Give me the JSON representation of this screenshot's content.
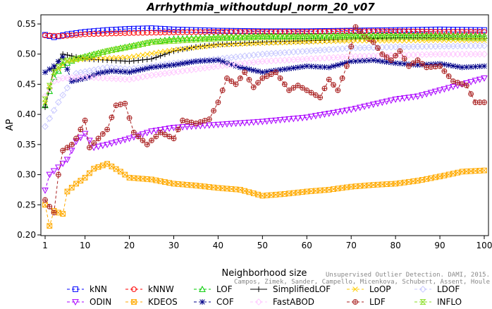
{
  "chart_data": {
    "type": "line",
    "title": "Arrhythmia_withoutdupl_norm_20_v07",
    "xlabel": "Neighborhood size",
    "ylabel": "AP",
    "xlim": [
      1,
      100
    ],
    "ylim": [
      0.2,
      0.55
    ],
    "xticks": [
      1,
      10,
      20,
      30,
      40,
      50,
      60,
      70,
      80,
      90,
      100
    ],
    "yticks": [
      0.2,
      0.25,
      0.3,
      0.35,
      0.4,
      0.45,
      0.5,
      0.55
    ],
    "grid": false,
    "legend_position": "bottom",
    "watermark": "Unsupervised Outlier Detection. DAMI, 2015. Campos, Zimek, Sander, Campello, Micenkova, Schubert, Assent, Houle",
    "series": [
      {
        "name": "kNN",
        "color": "#0000ff",
        "marker": "square",
        "dash": "4,3",
        "anchors": [
          [
            1,
            0.532
          ],
          [
            3,
            0.528
          ],
          [
            6,
            0.533
          ],
          [
            10,
            0.537
          ],
          [
            15,
            0.54
          ],
          [
            20,
            0.542
          ],
          [
            25,
            0.543
          ],
          [
            30,
            0.541
          ],
          [
            40,
            0.539
          ],
          [
            50,
            0.538
          ],
          [
            60,
            0.538
          ],
          [
            70,
            0.539
          ],
          [
            80,
            0.54
          ],
          [
            90,
            0.541
          ],
          [
            100,
            0.54
          ]
        ]
      },
      {
        "name": "kNNW",
        "color": "#ff0000",
        "marker": "circle",
        "dash": "4,3",
        "anchors": [
          [
            1,
            0.531
          ],
          [
            5,
            0.53
          ],
          [
            10,
            0.533
          ],
          [
            20,
            0.535
          ],
          [
            30,
            0.536
          ],
          [
            40,
            0.537
          ],
          [
            50,
            0.537
          ],
          [
            60,
            0.537
          ],
          [
            70,
            0.538
          ],
          [
            80,
            0.538
          ],
          [
            90,
            0.537
          ],
          [
            100,
            0.537
          ]
        ]
      },
      {
        "name": "LOF",
        "color": "#00cc00",
        "marker": "triangle",
        "dash": "4,3",
        "anchors": [
          [
            1,
            0.415
          ],
          [
            3,
            0.462
          ],
          [
            5,
            0.482
          ],
          [
            8,
            0.492
          ],
          [
            12,
            0.5
          ],
          [
            18,
            0.51
          ],
          [
            25,
            0.52
          ],
          [
            30,
            0.525
          ],
          [
            40,
            0.528
          ],
          [
            50,
            0.53
          ],
          [
            60,
            0.53
          ],
          [
            70,
            0.531
          ],
          [
            80,
            0.531
          ],
          [
            90,
            0.531
          ],
          [
            100,
            0.53
          ]
        ]
      },
      {
        "name": "SimplifiedLOF",
        "color": "#000000",
        "marker": "plus",
        "dash": "",
        "anchors": [
          [
            1,
            0.412
          ],
          [
            3,
            0.476
          ],
          [
            5,
            0.5
          ],
          [
            7,
            0.497
          ],
          [
            10,
            0.492
          ],
          [
            15,
            0.49
          ],
          [
            20,
            0.488
          ],
          [
            25,
            0.492
          ],
          [
            30,
            0.505
          ],
          [
            35,
            0.512
          ],
          [
            40,
            0.516
          ],
          [
            50,
            0.52
          ],
          [
            60,
            0.522
          ],
          [
            70,
            0.525
          ],
          [
            80,
            0.527
          ],
          [
            90,
            0.527
          ],
          [
            100,
            0.526
          ]
        ]
      },
      {
        "name": "LoOP",
        "color": "#ffcc00",
        "marker": "cross",
        "dash": "4,3",
        "anchors": [
          [
            1,
            0.42
          ],
          [
            3,
            0.47
          ],
          [
            6,
            0.488
          ],
          [
            10,
            0.492
          ],
          [
            20,
            0.495
          ],
          [
            30,
            0.507
          ],
          [
            40,
            0.515
          ],
          [
            50,
            0.518
          ],
          [
            60,
            0.52
          ],
          [
            70,
            0.522
          ],
          [
            80,
            0.522
          ],
          [
            90,
            0.523
          ],
          [
            100,
            0.523
          ]
        ]
      },
      {
        "name": "LDOF",
        "color": "#c8c8ff",
        "marker": "diamond",
        "dash": "4,3",
        "anchors": [
          [
            1,
            0.38
          ],
          [
            4,
            0.42
          ],
          [
            8,
            0.468
          ],
          [
            15,
            0.478
          ],
          [
            20,
            0.475
          ],
          [
            30,
            0.485
          ],
          [
            40,
            0.492
          ],
          [
            50,
            0.5
          ],
          [
            60,
            0.505
          ],
          [
            70,
            0.51
          ],
          [
            80,
            0.512
          ],
          [
            90,
            0.513
          ],
          [
            100,
            0.514
          ]
        ]
      },
      {
        "name": "ODIN",
        "color": "#aa00ff",
        "marker": "triangle-down",
        "dash": "4,3",
        "anchors": [
          [
            1,
            0.274
          ],
          [
            2,
            0.3
          ],
          [
            4,
            0.312
          ],
          [
            6,
            0.325
          ],
          [
            8,
            0.355
          ],
          [
            10,
            0.368
          ],
          [
            12,
            0.345
          ],
          [
            15,
            0.35
          ],
          [
            20,
            0.36
          ],
          [
            25,
            0.372
          ],
          [
            30,
            0.378
          ],
          [
            40,
            0.383
          ],
          [
            50,
            0.388
          ],
          [
            60,
            0.395
          ],
          [
            70,
            0.408
          ],
          [
            80,
            0.425
          ],
          [
            85,
            0.43
          ],
          [
            90,
            0.44
          ],
          [
            95,
            0.45
          ],
          [
            100,
            0.46
          ]
        ]
      },
      {
        "name": "KDEOS",
        "color": "#ffaa00",
        "marker": "square-x",
        "dash": "4,3",
        "anchors": [
          [
            1,
            0.25
          ],
          [
            2,
            0.215
          ],
          [
            3,
            0.24
          ],
          [
            4,
            0.237
          ],
          [
            5,
            0.235
          ],
          [
            6,
            0.272
          ],
          [
            8,
            0.285
          ],
          [
            10,
            0.295
          ],
          [
            12,
            0.31
          ],
          [
            15,
            0.318
          ],
          [
            18,
            0.305
          ],
          [
            20,
            0.295
          ],
          [
            25,
            0.292
          ],
          [
            30,
            0.285
          ],
          [
            35,
            0.282
          ],
          [
            40,
            0.278
          ],
          [
            45,
            0.275
          ],
          [
            50,
            0.265
          ],
          [
            55,
            0.268
          ],
          [
            60,
            0.272
          ],
          [
            65,
            0.275
          ],
          [
            70,
            0.28
          ],
          [
            75,
            0.283
          ],
          [
            80,
            0.285
          ],
          [
            85,
            0.29
          ],
          [
            90,
            0.297
          ],
          [
            95,
            0.305
          ],
          [
            100,
            0.307
          ]
        ]
      },
      {
        "name": "COF",
        "color": "#000088",
        "marker": "star",
        "dash": "4,3",
        "anchors": [
          [
            1,
            0.47
          ],
          [
            3,
            0.48
          ],
          [
            5,
            0.495
          ],
          [
            7,
            0.455
          ],
          [
            10,
            0.46
          ],
          [
            13,
            0.468
          ],
          [
            16,
            0.472
          ],
          [
            20,
            0.47
          ],
          [
            25,
            0.478
          ],
          [
            30,
            0.482
          ],
          [
            35,
            0.488
          ],
          [
            40,
            0.49
          ],
          [
            45,
            0.478
          ],
          [
            50,
            0.47
          ],
          [
            55,
            0.475
          ],
          [
            60,
            0.48
          ],
          [
            65,
            0.478
          ],
          [
            70,
            0.488
          ],
          [
            75,
            0.49
          ],
          [
            80,
            0.485
          ],
          [
            85,
            0.482
          ],
          [
            90,
            0.484
          ],
          [
            95,
            0.478
          ],
          [
            100,
            0.48
          ]
        ]
      },
      {
        "name": "FastABOD",
        "color": "#ffc8ff",
        "marker": "diamond",
        "dash": "4,3",
        "anchors": [
          [
            1,
            0.43
          ],
          [
            3,
            0.455
          ],
          [
            5,
            0.46
          ],
          [
            10,
            0.462
          ],
          [
            15,
            0.46
          ],
          [
            20,
            0.458
          ],
          [
            25,
            0.465
          ],
          [
            30,
            0.47
          ],
          [
            40,
            0.48
          ],
          [
            50,
            0.488
          ],
          [
            60,
            0.492
          ],
          [
            70,
            0.496
          ],
          [
            80,
            0.498
          ],
          [
            90,
            0.5
          ],
          [
            100,
            0.5
          ]
        ]
      },
      {
        "name": "LDF",
        "color": "#aa2222",
        "marker": "circle-plus",
        "dash": "4,3",
        "anchors": [
          [
            1,
            0.258
          ],
          [
            2,
            0.247
          ],
          [
            3,
            0.237
          ],
          [
            4,
            0.3
          ],
          [
            5,
            0.34
          ],
          [
            7,
            0.35
          ],
          [
            8,
            0.36
          ],
          [
            10,
            0.39
          ],
          [
            11,
            0.345
          ],
          [
            13,
            0.36
          ],
          [
            15,
            0.375
          ],
          [
            17,
            0.415
          ],
          [
            19,
            0.418
          ],
          [
            21,
            0.37
          ],
          [
            24,
            0.35
          ],
          [
            27,
            0.37
          ],
          [
            30,
            0.36
          ],
          [
            32,
            0.39
          ],
          [
            35,
            0.385
          ],
          [
            38,
            0.392
          ],
          [
            40,
            0.42
          ],
          [
            42,
            0.46
          ],
          [
            44,
            0.45
          ],
          [
            46,
            0.47
          ],
          [
            48,
            0.445
          ],
          [
            50,
            0.46
          ],
          [
            53,
            0.47
          ],
          [
            56,
            0.44
          ],
          [
            58,
            0.448
          ],
          [
            60,
            0.44
          ],
          [
            63,
            0.428
          ],
          [
            65,
            0.458
          ],
          [
            67,
            0.44
          ],
          [
            69,
            0.48
          ],
          [
            71,
            0.545
          ],
          [
            73,
            0.53
          ],
          [
            75,
            0.52
          ],
          [
            77,
            0.5
          ],
          [
            79,
            0.49
          ],
          [
            81,
            0.505
          ],
          [
            83,
            0.48
          ],
          [
            85,
            0.49
          ],
          [
            87,
            0.478
          ],
          [
            90,
            0.48
          ],
          [
            93,
            0.455
          ],
          [
            96,
            0.448
          ],
          [
            98,
            0.42
          ],
          [
            100,
            0.42
          ]
        ]
      },
      {
        "name": "INFLO",
        "color": "#88dd22",
        "marker": "hourglass",
        "dash": "4,3",
        "anchors": [
          [
            1,
            0.425
          ],
          [
            3,
            0.47
          ],
          [
            5,
            0.488
          ],
          [
            10,
            0.495
          ],
          [
            15,
            0.505
          ],
          [
            20,
            0.512
          ],
          [
            25,
            0.52
          ],
          [
            30,
            0.522
          ],
          [
            40,
            0.526
          ],
          [
            50,
            0.528
          ],
          [
            60,
            0.528
          ],
          [
            70,
            0.529
          ],
          [
            80,
            0.529
          ],
          [
            90,
            0.528
          ],
          [
            100,
            0.527
          ]
        ]
      }
    ]
  }
}
